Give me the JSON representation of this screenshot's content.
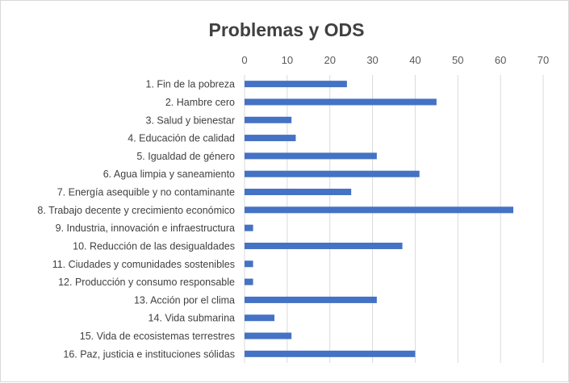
{
  "chart_data": {
    "type": "bar",
    "orientation": "horizontal",
    "title": "Problemas y ODS",
    "xlim": [
      0,
      70
    ],
    "xticks": [
      "0",
      "10",
      "20",
      "30",
      "40",
      "50",
      "60",
      "70"
    ],
    "grid": true,
    "legend": "none",
    "bar_color": "#4472c4",
    "categories": [
      "1. Fin de la pobreza",
      "2. Hambre cero",
      "3. Salud y bienestar",
      "4. Educación de calidad",
      "5. Igualdad de género",
      "6. Agua limpia y saneamiento",
      "7. Energía asequible y no contaminante",
      "8. Trabajo decente y crecimiento económico",
      "9. Industria, innovación e infraestructura",
      "10. Reducción de las desigualdades",
      "11. Ciudades y comunidades sostenibles",
      "12. Producción y consumo responsable",
      "13. Acción por el clima",
      "14. Vida submarina",
      "15. Vida de ecosistemas terrestres",
      "16. Paz, justicia e instituciones sólidas"
    ],
    "values": [
      24,
      45,
      11,
      12,
      31,
      41,
      25,
      63,
      2,
      37,
      2,
      2,
      31,
      7,
      11,
      40
    ]
  }
}
